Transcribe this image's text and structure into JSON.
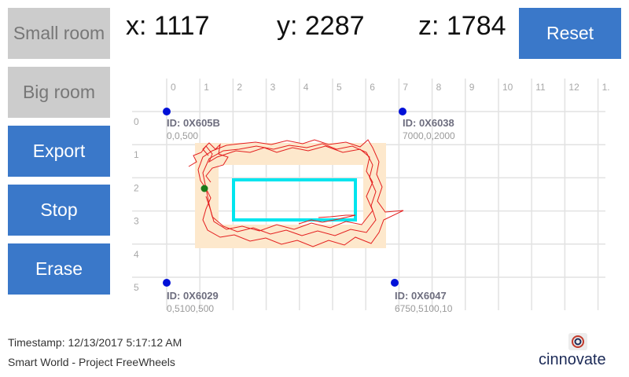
{
  "sidebar": {
    "buttons": [
      {
        "id": "small-room",
        "label": "Small room",
        "style": "gray"
      },
      {
        "id": "big-room",
        "label": "Big room",
        "style": "gray"
      },
      {
        "id": "export",
        "label": "Export",
        "style": "blue"
      },
      {
        "id": "stop",
        "label": "Stop",
        "style": "blue"
      },
      {
        "id": "erase",
        "label": "Erase",
        "style": "blue"
      }
    ]
  },
  "coords": {
    "x": "x: 1117",
    "y": "y: 2287",
    "z": "z: 1784"
  },
  "reset_label": "Reset",
  "grid": {
    "x_ticks": [
      "0",
      "1",
      "2",
      "3",
      "4",
      "5",
      "6",
      "7",
      "8",
      "9",
      "10",
      "11",
      "12",
      "1."
    ],
    "y_ticks": [
      "0",
      "1",
      "2",
      "3",
      "4",
      "5"
    ]
  },
  "anchors": [
    {
      "id": "ID: 0X605B",
      "coords": "0,0,500"
    },
    {
      "id": "ID: 0X6038",
      "coords": "7000,0,2000"
    },
    {
      "id": "ID: 0X6029",
      "coords": "0,5100,500"
    },
    {
      "id": "ID: 0X6047",
      "coords": "6750,5100,10"
    }
  ],
  "footer": {
    "timestamp": "Timestamp: 12/13/2017 5:17:12 AM",
    "project": "Smart World - Project FreeWheels"
  },
  "logo_text": "cinnovate",
  "colors": {
    "accent": "#3a78c9",
    "gray_button": "#cccccc",
    "track": "#e41e1e",
    "zone": "#fde8cc",
    "target": "#00e5ee",
    "anchor": "#0010d8",
    "current": "#1a7a1a"
  }
}
